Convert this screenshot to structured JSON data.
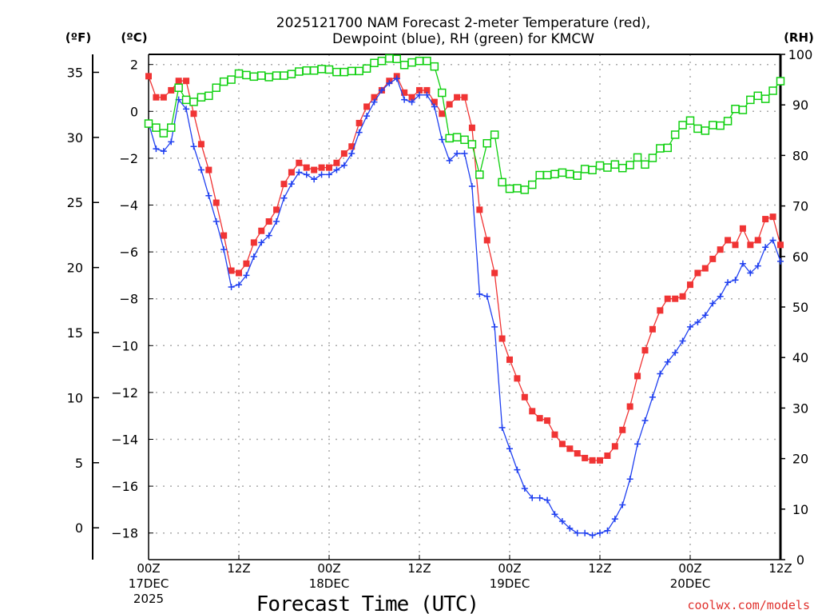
{
  "chart_data": {
    "type": "line",
    "title": [
      "2025121700 NAM Forecast 2-meter Temperature (red),",
      "Dewpoint (blue), RH (green) for KMCW"
    ],
    "xlabel": "Forecast Time (UTC)",
    "credit": "coolwx.com/models",
    "units": {
      "fahrenheit": "(ºF)",
      "celsius": "(ºC)",
      "rh": "(RH)"
    },
    "x_hours": {
      "start": 0,
      "end": 84,
      "step": 1
    },
    "xticks": [
      {
        "hour": 0,
        "lines": [
          "00Z",
          "17DEC",
          "2025"
        ]
      },
      {
        "hour": 12,
        "lines": [
          "12Z"
        ]
      },
      {
        "hour": 24,
        "lines": [
          "00Z",
          "18DEC"
        ]
      },
      {
        "hour": 36,
        "lines": [
          "12Z"
        ]
      },
      {
        "hour": 48,
        "lines": [
          "00Z",
          "19DEC"
        ]
      },
      {
        "hour": 60,
        "lines": [
          "12Z"
        ]
      },
      {
        "hour": 72,
        "lines": [
          "00Z",
          "20DEC"
        ]
      },
      {
        "hour": 84,
        "lines": [
          "12Z"
        ]
      }
    ],
    "celsius_axis": {
      "ticks": [
        2,
        0,
        -2,
        -4,
        -6,
        -8,
        -10,
        -12,
        -14,
        -16,
        -18
      ],
      "tick_labels": [
        "2",
        "0",
        "−2",
        "−4",
        "−6",
        "−8",
        "−10",
        "−12",
        "−14",
        "−16",
        "−18"
      ],
      "range": [
        -19.2,
        2.4
      ]
    },
    "fahrenheit_axis": {
      "ticks": [
        35,
        30,
        25,
        20,
        15,
        10,
        5,
        0
      ],
      "tick_labels": [
        "35",
        "30",
        "25",
        "20",
        "15",
        "10",
        "5",
        "0"
      ]
    },
    "rh_axis": {
      "ticks": [
        100,
        90,
        80,
        70,
        60,
        50,
        40,
        30,
        20,
        10,
        0
      ],
      "tick_labels": [
        "100",
        "90",
        "80",
        "70",
        "60",
        "50",
        "40",
        "30",
        "20",
        "10",
        "0"
      ],
      "range": [
        0,
        100
      ]
    },
    "grid": true,
    "colors": {
      "temperature": "#f03434",
      "dewpoint": "#2040f0",
      "rh": "#10d010"
    },
    "series": [
      {
        "name": "Temperature (°C)",
        "axis": "celsius",
        "values": [
          1.5,
          0.6,
          0.6,
          0.9,
          1.3,
          1.3,
          -0.1,
          -1.4,
          -2.5,
          -3.9,
          -5.3,
          -6.8,
          -6.9,
          -6.5,
          -5.6,
          -5.1,
          -4.7,
          -4.2,
          -3.1,
          -2.6,
          -2.2,
          -2.4,
          -2.5,
          -2.4,
          -2.4,
          -2.2,
          -1.8,
          -1.5,
          -0.5,
          0.2,
          0.6,
          0.9,
          1.3,
          1.5,
          0.8,
          0.6,
          0.9,
          0.9,
          0.4,
          -0.1,
          0.3,
          0.6,
          0.6,
          -0.7,
          -4.2,
          -5.5,
          -6.9,
          -9.7,
          -10.6,
          -11.4,
          -12.2,
          -12.8,
          -13.1,
          -13.2,
          -13.8,
          -14.2,
          -14.4,
          -14.6,
          -14.8,
          -14.9,
          -14.9,
          -14.7,
          -14.3,
          -13.6,
          -12.6,
          -11.3,
          -10.2,
          -9.3,
          -8.5,
          -8.0,
          -8.0,
          -7.9,
          -7.4,
          -6.9,
          -6.7,
          -6.3,
          -5.9,
          -5.5,
          -5.7,
          -5.0,
          -5.7,
          -5.5,
          -4.6,
          -4.5,
          -5.7
        ]
      },
      {
        "name": "Dewpoint (°C)",
        "axis": "celsius",
        "values": [
          -0.5,
          -1.6,
          -1.7,
          -1.3,
          0.5,
          0.1,
          -1.5,
          -2.5,
          -3.6,
          -4.7,
          -5.9,
          -7.5,
          -7.4,
          -7.0,
          -6.2,
          -5.6,
          -5.3,
          -4.7,
          -3.7,
          -3.1,
          -2.6,
          -2.7,
          -2.9,
          -2.7,
          -2.7,
          -2.5,
          -2.3,
          -1.8,
          -0.9,
          -0.2,
          0.4,
          0.9,
          1.2,
          1.4,
          0.5,
          0.4,
          0.7,
          0.7,
          0.2,
          -1.2,
          -2.1,
          -1.8,
          -1.8,
          -3.2,
          -7.8,
          -7.9,
          -9.2,
          -13.5,
          -14.4,
          -15.3,
          -16.1,
          -16.5,
          -16.5,
          -16.6,
          -17.2,
          -17.5,
          -17.8,
          -18.0,
          -18.0,
          -18.1,
          -18.0,
          -17.9,
          -17.4,
          -16.8,
          -15.7,
          -14.2,
          -13.2,
          -12.2,
          -11.2,
          -10.7,
          -10.3,
          -9.8,
          -9.2,
          -9.0,
          -8.7,
          -8.2,
          -7.9,
          -7.3,
          -7.2,
          -6.5,
          -6.9,
          -6.6,
          -5.8,
          -5.5,
          -6.4
        ]
      },
      {
        "name": "RH (%)",
        "axis": "rh",
        "values": [
          86.3,
          85.5,
          84.4,
          85.5,
          93.4,
          91.0,
          90.6,
          91.5,
          91.8,
          93.4,
          94.6,
          95.0,
          96.2,
          95.9,
          95.6,
          95.8,
          95.5,
          95.8,
          95.8,
          96.1,
          96.6,
          96.8,
          96.8,
          97.1,
          97.0,
          96.5,
          96.5,
          96.7,
          96.7,
          97.2,
          98.3,
          98.7,
          99.2,
          99.1,
          97.9,
          98.4,
          98.7,
          98.7,
          97.6,
          92.4,
          83.4,
          83.6,
          83.1,
          82.2,
          76.2,
          82.4,
          84.1,
          74.7,
          73.4,
          73.5,
          73.2,
          74.2,
          76.1,
          76.1,
          76.3,
          76.6,
          76.3,
          76.0,
          77.3,
          77.1,
          78.0,
          77.6,
          78.2,
          77.5,
          78.1,
          79.6,
          78.2,
          79.5,
          81.4,
          81.5,
          84.1,
          86.0,
          86.9,
          85.3,
          84.9,
          86.0,
          85.9,
          86.8,
          89.2,
          89.0,
          91.0,
          91.8,
          91.2,
          92.8,
          94.7
        ]
      }
    ]
  }
}
